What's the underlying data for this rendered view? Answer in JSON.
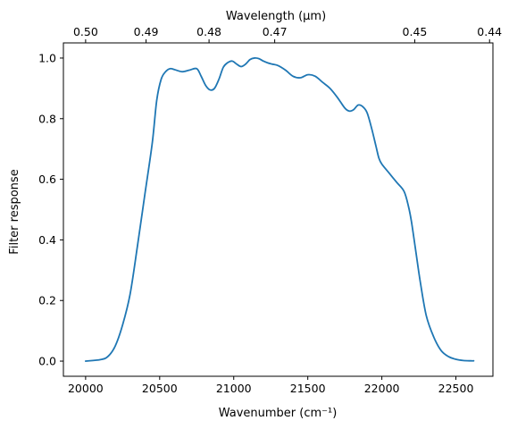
{
  "chart_data": {
    "type": "line",
    "xlabel": "Wavenumber (cm⁻¹)",
    "ylabel": "Filter response",
    "top_xlabel": "Wavelength (μm)",
    "xlim": [
      19850,
      22750
    ],
    "ylim": [
      -0.05,
      1.05
    ],
    "grid": false,
    "xticks": [
      {
        "value": 20000,
        "label": "20000"
      },
      {
        "value": 20500,
        "label": "20500"
      },
      {
        "value": 21000,
        "label": "21000"
      },
      {
        "value": 21500,
        "label": "21500"
      },
      {
        "value": 22000,
        "label": "22000"
      },
      {
        "value": 22500,
        "label": "22500"
      }
    ],
    "yticks": [
      {
        "value": 0.0,
        "label": "0.0"
      },
      {
        "value": 0.2,
        "label": "0.2"
      },
      {
        "value": 0.4,
        "label": "0.4"
      },
      {
        "value": 0.6,
        "label": "0.6"
      },
      {
        "value": 0.8,
        "label": "0.8"
      },
      {
        "value": 1.0,
        "label": "1.0"
      }
    ],
    "top_xticks": [
      {
        "wavelength": 0.5,
        "label": "0.50"
      },
      {
        "wavelength": 0.49,
        "label": "0.49"
      },
      {
        "wavelength": 0.48,
        "label": "0.48"
      },
      {
        "wavelength": 0.47,
        "label": "0.47"
      },
      {
        "wavelength": 0.45,
        "label": "0.45"
      },
      {
        "wavelength": 0.44,
        "label": "0.44"
      }
    ],
    "series": [
      {
        "color": "#1f77b4",
        "x": [
          20000,
          20100,
          20150,
          20200,
          20250,
          20300,
          20350,
          20400,
          20450,
          20480,
          20510,
          20540,
          20570,
          20600,
          20650,
          20700,
          20750,
          20780,
          20810,
          20840,
          20870,
          20900,
          20930,
          20960,
          20990,
          21020,
          21050,
          21080,
          21110,
          21140,
          21170,
          21200,
          21230,
          21260,
          21300,
          21350,
          21400,
          21450,
          21500,
          21550,
          21600,
          21650,
          21700,
          21750,
          21780,
          21810,
          21840,
          21870,
          21900,
          21930,
          21960,
          21980,
          22000,
          22050,
          22100,
          22150,
          22180,
          22200,
          22230,
          22260,
          22300,
          22350,
          22400,
          22450,
          22500,
          22550,
          22600,
          22620
        ],
        "y": [
          0.0,
          0.005,
          0.015,
          0.05,
          0.12,
          0.22,
          0.38,
          0.55,
          0.72,
          0.86,
          0.93,
          0.955,
          0.965,
          0.962,
          0.955,
          0.96,
          0.965,
          0.94,
          0.91,
          0.895,
          0.9,
          0.93,
          0.97,
          0.985,
          0.99,
          0.98,
          0.972,
          0.98,
          0.995,
          1.0,
          0.998,
          0.99,
          0.984,
          0.98,
          0.975,
          0.96,
          0.94,
          0.935,
          0.945,
          0.94,
          0.92,
          0.9,
          0.87,
          0.835,
          0.825,
          0.83,
          0.845,
          0.84,
          0.82,
          0.77,
          0.71,
          0.67,
          0.65,
          0.62,
          0.59,
          0.56,
          0.51,
          0.46,
          0.36,
          0.26,
          0.15,
          0.08,
          0.035,
          0.015,
          0.006,
          0.002,
          0.001,
          0.001
        ]
      }
    ]
  }
}
